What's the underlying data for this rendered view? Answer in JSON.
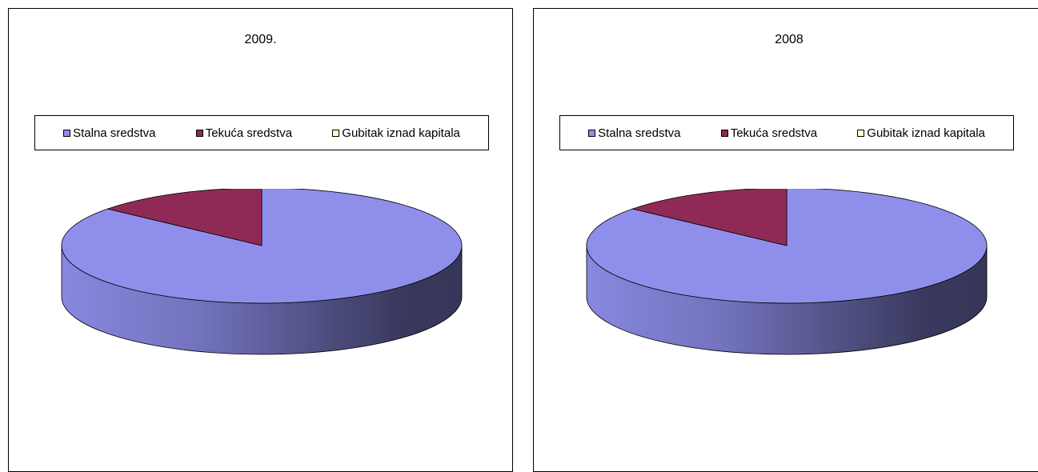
{
  "chart_data": [
    {
      "type": "pie",
      "title": "2009.",
      "categories": [
        "Stalna sredstva",
        "Tekuća sredstva",
        "Gubitak iznad kapitala"
      ],
      "values": [
        86,
        14,
        0
      ],
      "colors": [
        "#8F8FEB",
        "#8F2A56",
        "#FFFFCC"
      ],
      "legend_position": "top"
    },
    {
      "type": "pie",
      "title": "2008",
      "categories": [
        "Stalna sredstva",
        "Tekuća sredstva",
        "Gubitak iznad kapitala"
      ],
      "values": [
        86,
        14,
        0
      ],
      "colors": [
        "#8F8FEB",
        "#8F2A56",
        "#FFFFCC"
      ],
      "legend_position": "top"
    }
  ]
}
